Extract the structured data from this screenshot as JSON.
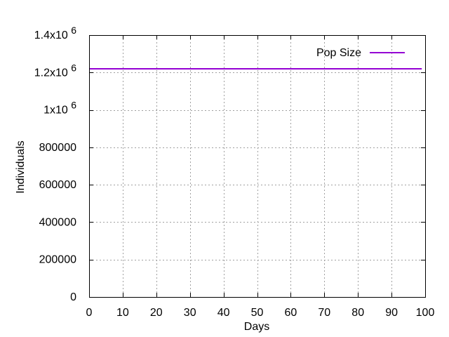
{
  "chart_data": {
    "type": "line",
    "title": "",
    "xlabel": "Days",
    "ylabel": "Individuals",
    "xlim": [
      0,
      100
    ],
    "ylim": [
      0,
      1400000
    ],
    "grid": true,
    "legend_position": "top-right",
    "x_ticks": [
      {
        "value": 0,
        "label": "0"
      },
      {
        "value": 10,
        "label": "10"
      },
      {
        "value": 20,
        "label": "20"
      },
      {
        "value": 30,
        "label": "30"
      },
      {
        "value": 40,
        "label": "40"
      },
      {
        "value": 50,
        "label": "50"
      },
      {
        "value": 60,
        "label": "60"
      },
      {
        "value": 70,
        "label": "70"
      },
      {
        "value": 80,
        "label": "80"
      },
      {
        "value": 90,
        "label": "90"
      },
      {
        "value": 100,
        "label": "100"
      }
    ],
    "y_ticks": [
      {
        "value": 0,
        "label": "0"
      },
      {
        "value": 200000,
        "label": "200000"
      },
      {
        "value": 400000,
        "label": "400000"
      },
      {
        "value": 600000,
        "label": "600000"
      },
      {
        "value": 800000,
        "label": "800000"
      },
      {
        "value": 1000000,
        "label": "1x10",
        "exp": "6"
      },
      {
        "value": 1200000,
        "label": "1.2x10",
        "exp": "6"
      },
      {
        "value": 1400000,
        "label": "1.4x10",
        "exp": "6"
      }
    ],
    "series": [
      {
        "name": "Pop Size",
        "color": "#9400d3",
        "x": [
          0,
          99
        ],
        "y": [
          1220000,
          1220000
        ]
      }
    ]
  }
}
